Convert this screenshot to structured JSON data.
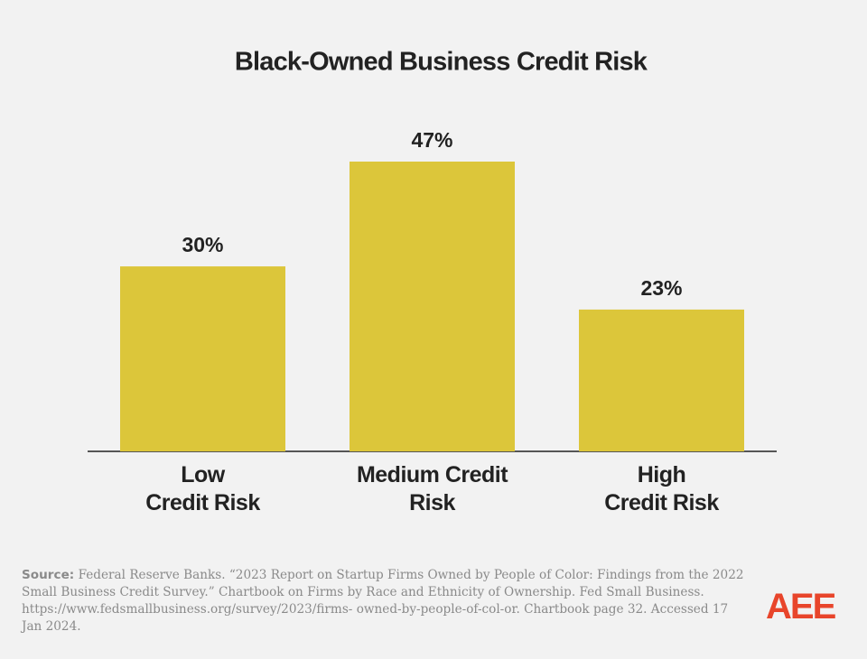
{
  "chart_data": {
    "type": "bar",
    "title": "Black-Owned Business Credit Risk",
    "categories": [
      "Low\nCredit Risk",
      "Medium Credit\nRisk",
      "High\nCredit Risk"
    ],
    "values": [
      30,
      47,
      23
    ],
    "value_labels": [
      "30%",
      "47%",
      "23%"
    ],
    "color": "#dcc63a"
  },
  "footer": {
    "source_label": "Source:",
    "source_text": "Federal Reserve Banks. “2023 Report on Startup Firms Owned by People of Color: Findings from the 2022 Small Business Credit Survey.” Chartbook on Firms by Race and Ethnicity of Ownership. Fed Small Business. https://www.fedsmallbusiness.org/survey/2023/firms- owned-by-people-of-col-or. Chartbook page 32. Accessed 17 Jan 2024.",
    "logo": "AEE"
  }
}
